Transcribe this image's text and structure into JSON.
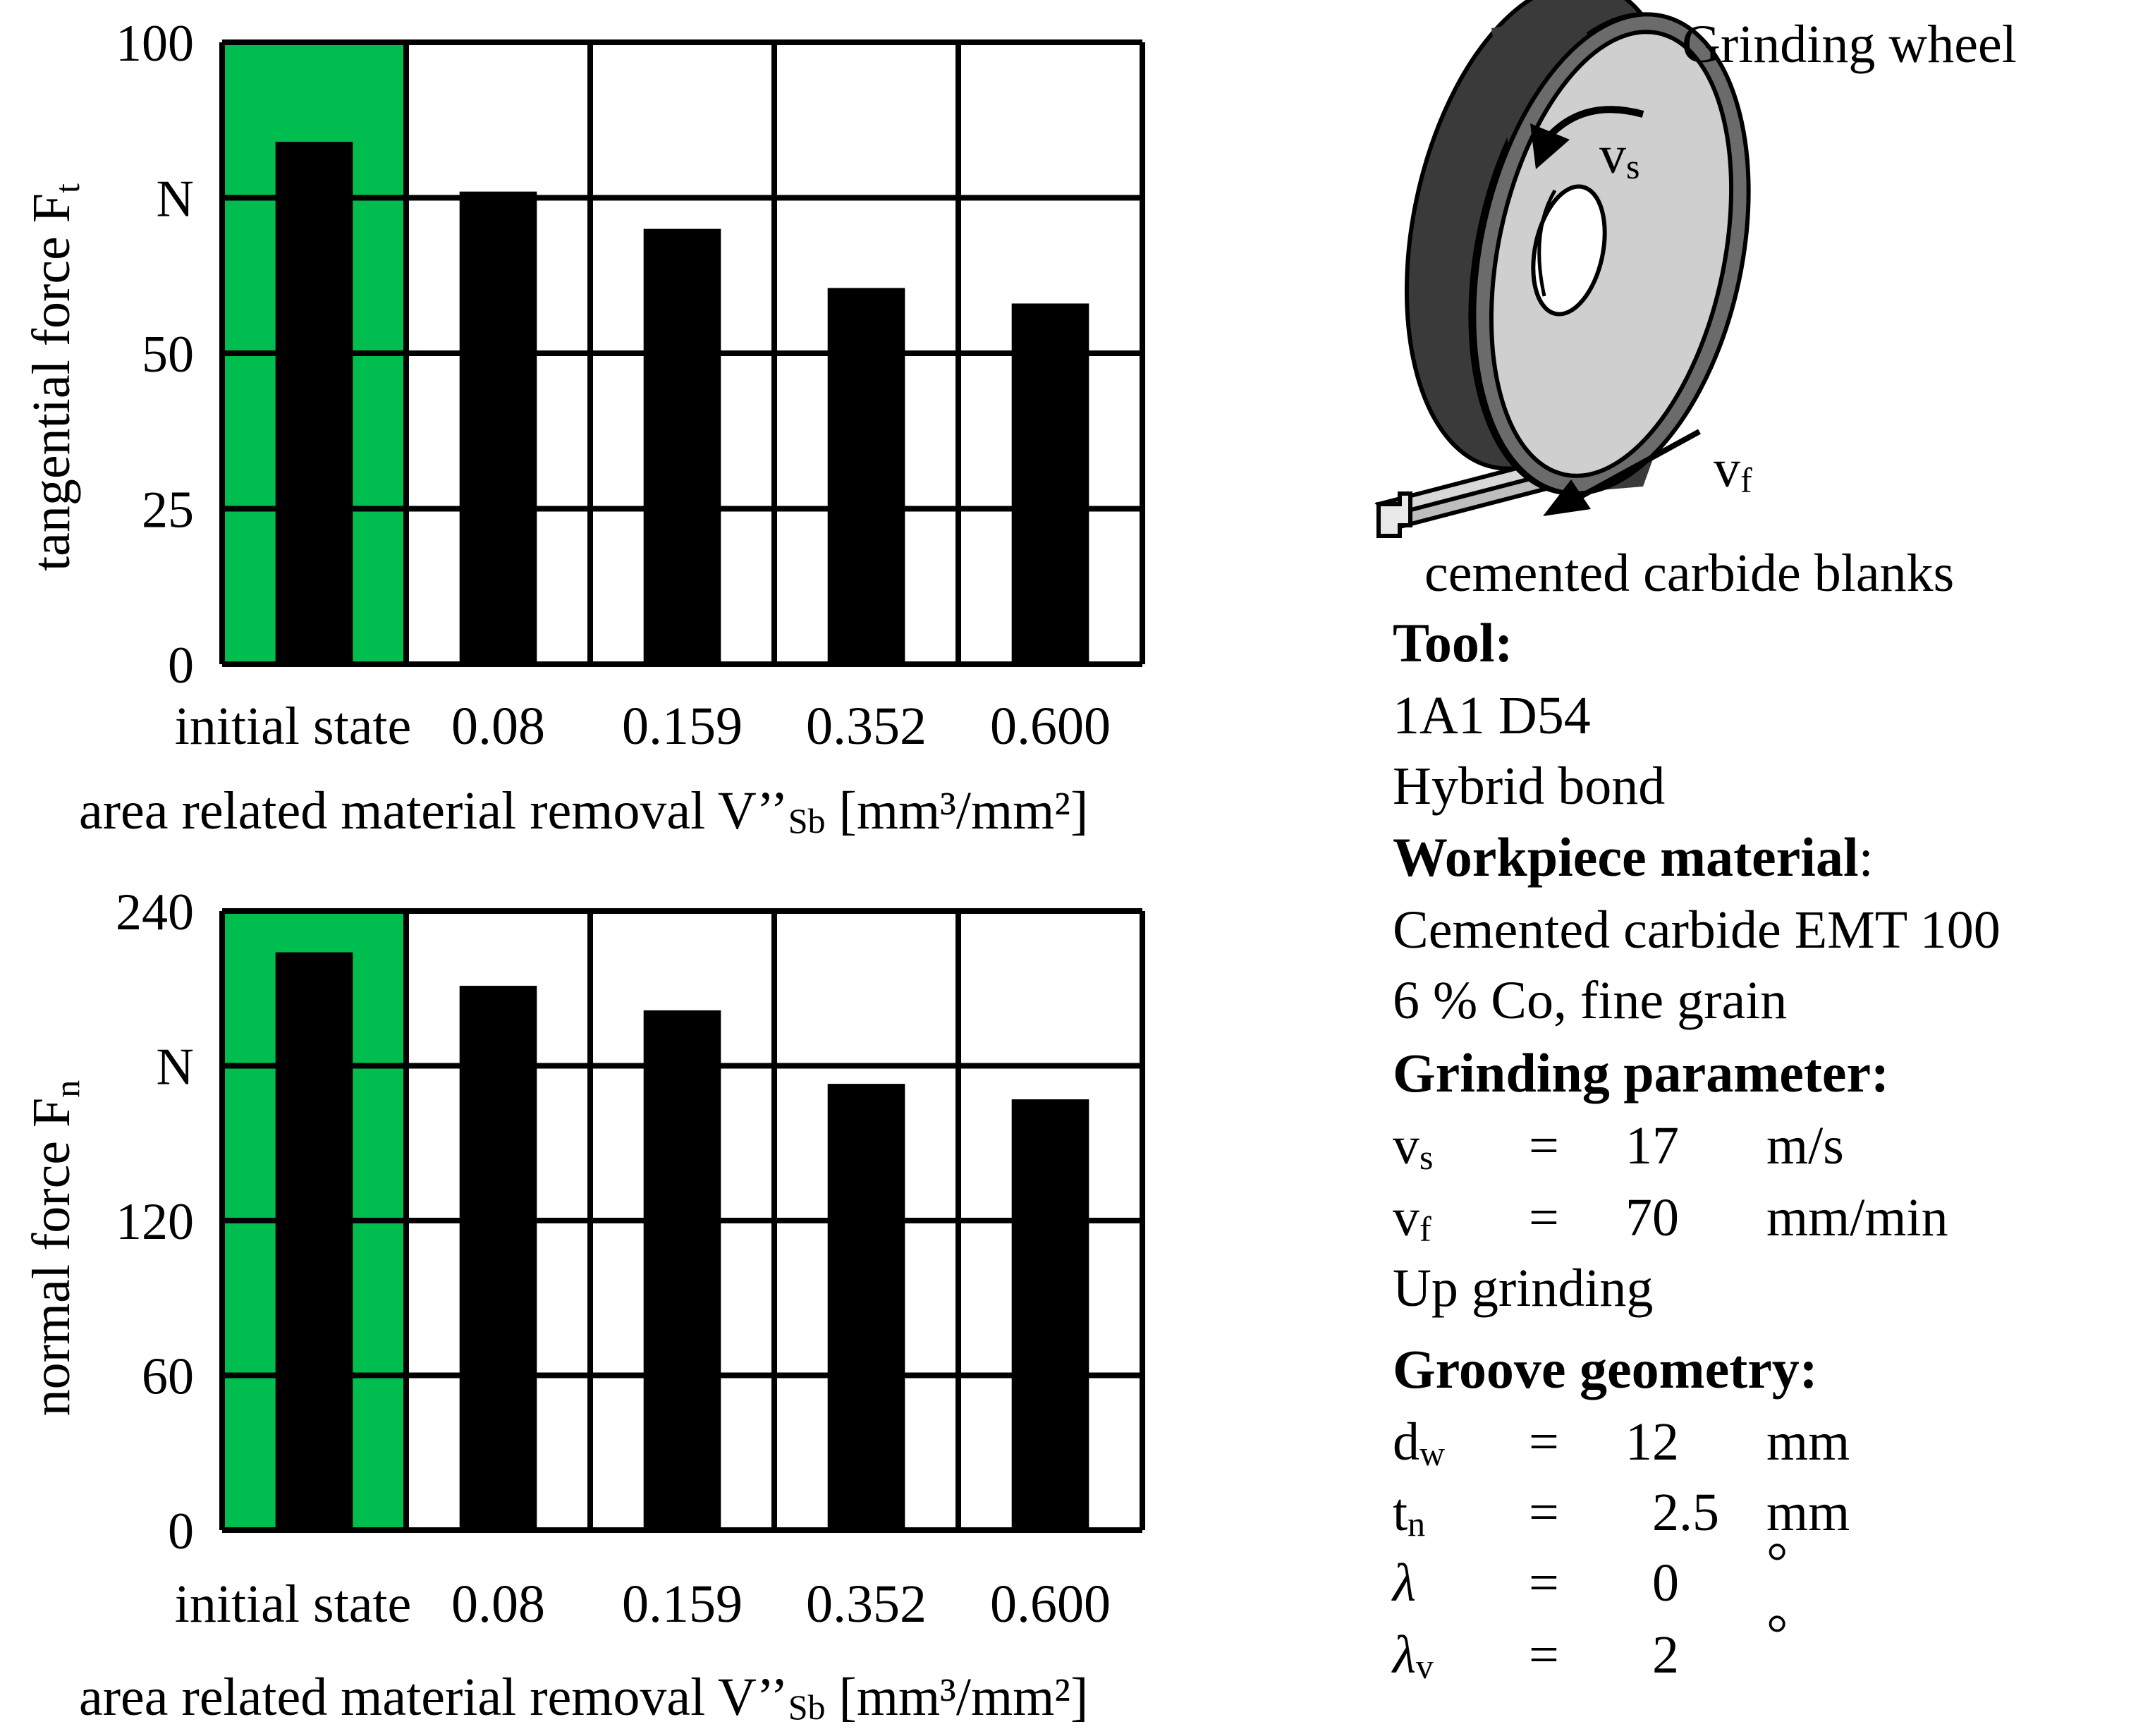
{
  "colors": {
    "highlight": "#00bd50",
    "bar": "#000000",
    "grid": "#000000",
    "wheel_dark": "#3a3a3a",
    "wheel_light": "#cfcfcf"
  },
  "chart_data": [
    {
      "type": "bar",
      "name": "tangential-force",
      "categories": [
        "initial state",
        "0.08",
        "0.159",
        "0.352",
        "0.600"
      ],
      "values": [
        84,
        76,
        70,
        60.5,
        58
      ],
      "highlight_category": "initial state",
      "ylim": [
        0,
        100
      ],
      "yticks": [
        "0",
        "25",
        "50",
        "",
        "100"
      ],
      "y_unit_label": "N",
      "ylabel": "tangential force F",
      "ylabel_sub": "t",
      "xlabel_main": "area related material removal V’’",
      "xlabel_sub": "Sb",
      "xlabel_unit": " [mm³/mm²]",
      "grid": true
    },
    {
      "type": "bar",
      "name": "normal-force",
      "categories": [
        "initial state",
        "0.08",
        "0.159",
        "0.352",
        "0.600"
      ],
      "values": [
        224,
        211,
        201.5,
        173,
        167
      ],
      "highlight_category": "initial state",
      "ylim": [
        0,
        240
      ],
      "yticks": [
        "0",
        "60",
        "120",
        "",
        "240"
      ],
      "y_unit_label": "N",
      "ylabel": "normal force F",
      "ylabel_sub": "n",
      "xlabel_main": "area related material removal V’’",
      "xlabel_sub": "Sb",
      "xlabel_unit": " [mm³/mm²]",
      "grid": true
    }
  ],
  "diagram": {
    "wheel_label": "Grinding wheel",
    "vs_label": "v",
    "vs_sub": "s",
    "vf_label": "v",
    "vf_sub": "f",
    "blank_label": "cemented carbide blanks"
  },
  "info": {
    "tool_heading": "Tool:",
    "tool_line1": "1A1 D54",
    "tool_line2": "Hybrid bond",
    "workpiece_heading": "Workpiece material",
    "workpiece_colon": ":",
    "workpiece_line1": "Cemented carbide EMT 100",
    "workpiece_line2": "6 % Co, fine grain",
    "grinding_heading": "Grinding parameter:",
    "grinding_params": [
      {
        "sym": "v",
        "sub": "s",
        "eq": "=",
        "val": "17",
        "unit": "m/s"
      },
      {
        "sym": "v",
        "sub": "f",
        "eq": "=",
        "val": "70",
        "unit": "mm/min"
      }
    ],
    "grinding_mode": "Up grinding",
    "groove_heading": "Groove geometry:",
    "groove_params": [
      {
        "sym": "d",
        "sub": "w",
        "eq": "=",
        "val": "12",
        "unit": "mm"
      },
      {
        "sym": "t",
        "sub": "n",
        "eq": "=",
        "val": "2.5",
        "unit": "mm"
      },
      {
        "sym": "λ",
        "sub": "",
        "eq": "=",
        "val": "0",
        "unit": "°"
      },
      {
        "sym": "λ",
        "sub": "v",
        "eq": "=",
        "val": "2",
        "unit": "°"
      }
    ]
  }
}
